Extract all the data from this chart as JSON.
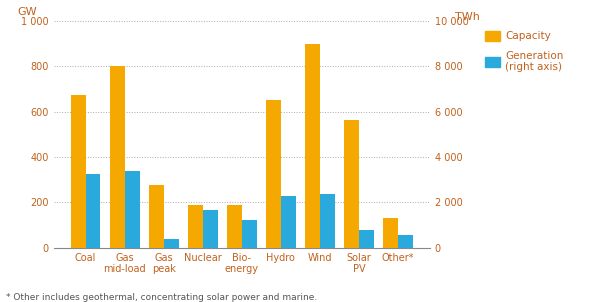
{
  "categories": [
    "Coal",
    "Gas\nmid-load",
    "Gas\npeak",
    "Nuclear",
    "Bio-\nenergy",
    "Hydro",
    "Wind",
    "Solar\nPV",
    "Other*"
  ],
  "capacity_GW": [
    675,
    800,
    275,
    190,
    190,
    650,
    900,
    565,
    130
  ],
  "generation_GW_scaled": [
    325,
    340,
    40,
    165,
    120,
    230,
    235,
    80,
    55
  ],
  "capacity_color": "#F5A800",
  "generation_color": "#29A9DC",
  "ylabel_left": "GW",
  "ylabel_right": "TWh",
  "ylim_left": [
    0,
    1000
  ],
  "ylim_right": [
    0,
    10000
  ],
  "yticks_left": [
    0,
    200,
    400,
    600,
    800,
    1000
  ],
  "ytick_labels_left": [
    "0",
    "200",
    "400",
    "600",
    "800",
    "1 000"
  ],
  "yticks_right": [
    0,
    2000,
    4000,
    6000,
    8000,
    10000
  ],
  "ytick_labels_right": [
    "0",
    "2 000",
    "4 000",
    "6 000",
    "8 000",
    "10 000"
  ],
  "legend_labels": [
    "Capacity",
    "Generation\n(right axis)"
  ],
  "footnote": "* Other includes geothermal, concentrating solar power and marine.",
  "background_color": "#ffffff",
  "grid_color": "#aaaaaa",
  "label_color": "#C0621D",
  "tick_color": "#C0621D"
}
